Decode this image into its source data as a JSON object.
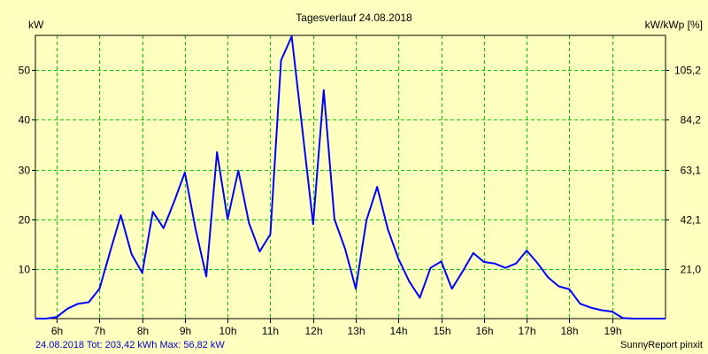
{
  "chart_data": {
    "type": "line",
    "title": "Tagesverlauf 24.08.2018",
    "ylabel_left": "kW",
    "ylabel_right": "kW/kWp [%]",
    "x_tick_labels": [
      "6h",
      "7h",
      "8h",
      "9h",
      "10h",
      "11h",
      "12h",
      "13h",
      "14h",
      "15h",
      "16h",
      "17h",
      "18h",
      "19h"
    ],
    "x_ticks": [
      6,
      7,
      8,
      9,
      10,
      11,
      12,
      13,
      14,
      15,
      16,
      17,
      18,
      19
    ],
    "xlim": [
      5.5,
      20.25
    ],
    "ylim_left": [
      0,
      57
    ],
    "y_ticks_left": [
      10,
      20,
      30,
      40,
      50
    ],
    "y_tick_labels_left": [
      "10",
      "20",
      "30",
      "40",
      "50"
    ],
    "y_ticks_right_percent": [
      21.0,
      42.1,
      63.1,
      84.2,
      105.2
    ],
    "y_tick_labels_right": [
      "21,0",
      "42,1",
      "63,1",
      "84,2",
      "105,2"
    ],
    "grid": true,
    "colors": {
      "background": "#ffffc0",
      "grid": "#00cc00",
      "line": "#0000ff",
      "footer_left": "#0000cc",
      "text": "#000000"
    },
    "series": [
      {
        "x": [
          5.5,
          5.75,
          6.0,
          6.25,
          6.5,
          6.75,
          7.0,
          7.25,
          7.5,
          7.75,
          8.0,
          8.25,
          8.5,
          8.75,
          9.0,
          9.25,
          9.5,
          9.75,
          10.0,
          10.25,
          10.5,
          10.75,
          11.0,
          11.25,
          11.5,
          11.75,
          12.0,
          12.25,
          12.5,
          12.75,
          13.0,
          13.25,
          13.5,
          13.75,
          14.0,
          14.25,
          14.5,
          14.75,
          15.0,
          15.25,
          15.5,
          15.75,
          16.0,
          16.25,
          16.5,
          16.75,
          17.0,
          17.25,
          17.5,
          17.75,
          18.0,
          18.25,
          18.5,
          18.75,
          19.0,
          19.25,
          19.5,
          19.75,
          20.0,
          20.25
        ],
        "values": [
          0,
          0,
          0.3,
          2.0,
          3.0,
          3.3,
          6.0,
          13.5,
          20.8,
          13.0,
          9.2,
          21.5,
          18.2,
          23.6,
          29.4,
          18.0,
          8.5,
          33.5,
          20.0,
          29.8,
          19.2,
          13.5,
          17.0,
          52.0,
          56.8,
          38.0,
          19.0,
          46.0,
          20.0,
          14.0,
          6.0,
          19.8,
          26.5,
          18.0,
          12.0,
          7.5,
          4.2,
          10.2,
          11.5,
          6.0,
          9.5,
          13.2,
          11.4,
          11.1,
          10.2,
          11.1,
          13.7,
          11.2,
          8.3,
          6.5,
          5.9,
          3.0,
          2.2,
          1.7,
          1.4,
          0.1,
          0,
          0,
          0,
          0
        ]
      }
    ],
    "footer_left": "24.08.2018 Tot: 203,42 kWh Max: 56,82 kW",
    "footer_right": "SunnyReport pinxit"
  }
}
